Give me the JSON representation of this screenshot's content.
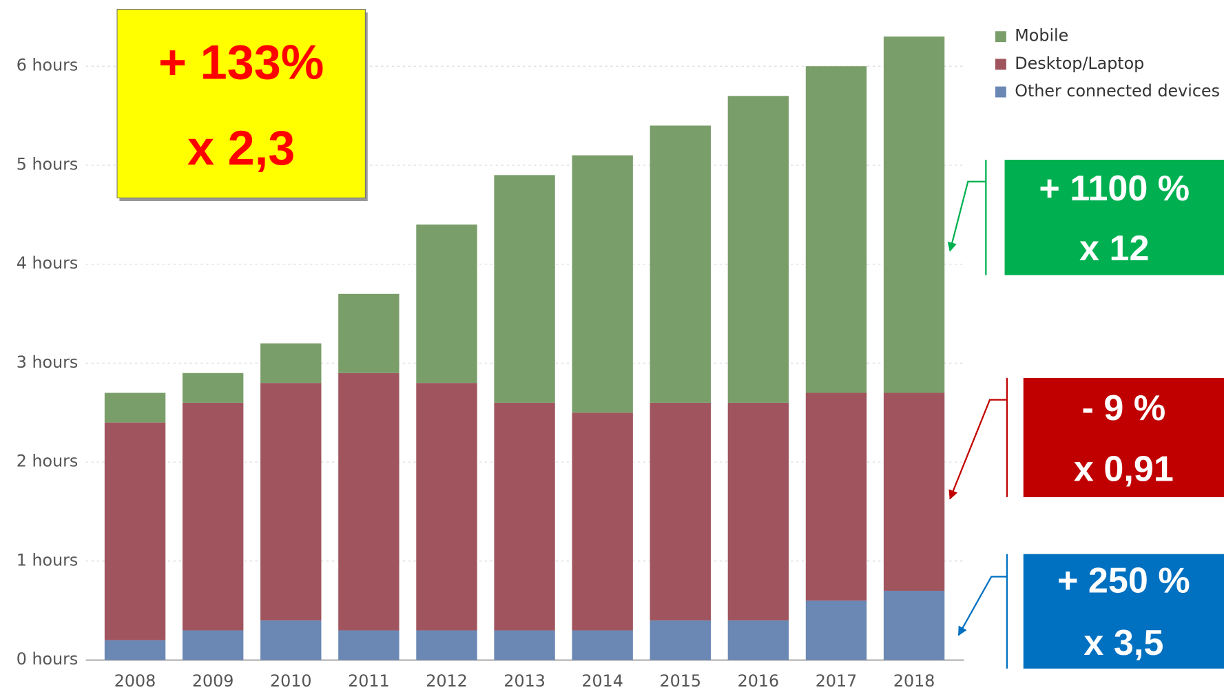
{
  "chart_data": {
    "type": "stacked_bar",
    "categories": [
      "2008",
      "2009",
      "2010",
      "2011",
      "2012",
      "2013",
      "2014",
      "2015",
      "2016",
      "2017",
      "2018"
    ],
    "series": [
      {
        "name": "Mobile",
        "color": "#7a9e6a",
        "values": [
          0.3,
          0.3,
          0.4,
          0.8,
          1.6,
          2.3,
          2.6,
          2.8,
          3.1,
          3.3,
          3.6
        ]
      },
      {
        "name": "Desktop/Laptop",
        "color": "#a0555e",
        "values": [
          2.2,
          2.3,
          2.4,
          2.6,
          2.5,
          2.3,
          2.2,
          2.2,
          2.2,
          2.1,
          2.0
        ]
      },
      {
        "name": "Other connected devices",
        "color": "#6b88b4",
        "values": [
          0.2,
          0.3,
          0.4,
          0.3,
          0.3,
          0.3,
          0.3,
          0.4,
          0.4,
          0.6,
          0.7
        ]
      }
    ],
    "ylim": [
      0,
      6.6
    ],
    "yticks": [
      {
        "value": 0,
        "label": "0 hours"
      },
      {
        "value": 1,
        "label": "1 hours"
      },
      {
        "value": 2,
        "label": "2 hours"
      },
      {
        "value": 3,
        "label": "3 hours"
      },
      {
        "value": 4,
        "label": "4 hours"
      },
      {
        "value": 5,
        "label": "5 hours"
      },
      {
        "value": 6,
        "label": "6 hours"
      }
    ],
    "grid": true,
    "legend": "right",
    "annotations": [
      {
        "lines": [
          "+ 133%",
          "x 2,3"
        ],
        "color": "#ff0000",
        "background": "#ffff00"
      },
      {
        "lines": [
          "+ 1100 %",
          "x 12"
        ],
        "color": "#ffffff",
        "background": "#00b050"
      },
      {
        "lines": [
          "- 9 %",
          "x 0,91"
        ],
        "color": "#ffffff",
        "background": "#c00000"
      },
      {
        "lines": [
          "+ 250 %",
          "x 3,5"
        ],
        "color": "#ffffff",
        "background": "#0070c0"
      }
    ]
  }
}
